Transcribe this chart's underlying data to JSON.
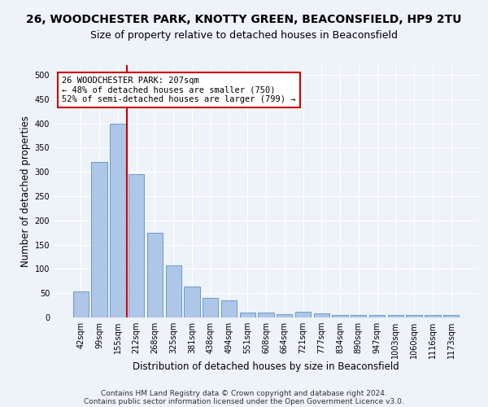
{
  "title_line1": "26, WOODCHESTER PARK, KNOTTY GREEN, BEACONSFIELD, HP9 2TU",
  "title_line2": "Size of property relative to detached houses in Beaconsfield",
  "xlabel": "Distribution of detached houses by size in Beaconsfield",
  "ylabel": "Number of detached properties",
  "categories": [
    "42sqm",
    "99sqm",
    "155sqm",
    "212sqm",
    "268sqm",
    "325sqm",
    "381sqm",
    "438sqm",
    "494sqm",
    "551sqm",
    "608sqm",
    "664sqm",
    "721sqm",
    "777sqm",
    "834sqm",
    "890sqm",
    "947sqm",
    "1003sqm",
    "1060sqm",
    "1116sqm",
    "1173sqm"
  ],
  "values": [
    53,
    320,
    400,
    295,
    175,
    107,
    63,
    40,
    35,
    10,
    10,
    7,
    12,
    8,
    5,
    5,
    5,
    5,
    5,
    5,
    5
  ],
  "bar_color": "#aec6e8",
  "bar_edge_color": "#5b8fc9",
  "vline_color": "#cc0000",
  "vline_x_index": 2.5,
  "annotation_text": "26 WOODCHESTER PARK: 207sqm\n← 48% of detached houses are smaller (750)\n52% of semi-detached houses are larger (799) →",
  "annotation_box_facecolor": "#ffffff",
  "annotation_box_edgecolor": "#cc0000",
  "ylim": [
    0,
    520
  ],
  "yticks": [
    0,
    50,
    100,
    150,
    200,
    250,
    300,
    350,
    400,
    450,
    500
  ],
  "footnote_line1": "Contains HM Land Registry data © Crown copyright and database right 2024.",
  "footnote_line2": "Contains public sector information licensed under the Open Government Licence v3.0.",
  "background_color": "#eef2f9",
  "grid_color": "#ffffff",
  "title1_fontsize": 10,
  "title2_fontsize": 9,
  "xlabel_fontsize": 8.5,
  "ylabel_fontsize": 8.5,
  "tick_fontsize": 7,
  "annotation_fontsize": 7.5,
  "footnote_fontsize": 6.5
}
